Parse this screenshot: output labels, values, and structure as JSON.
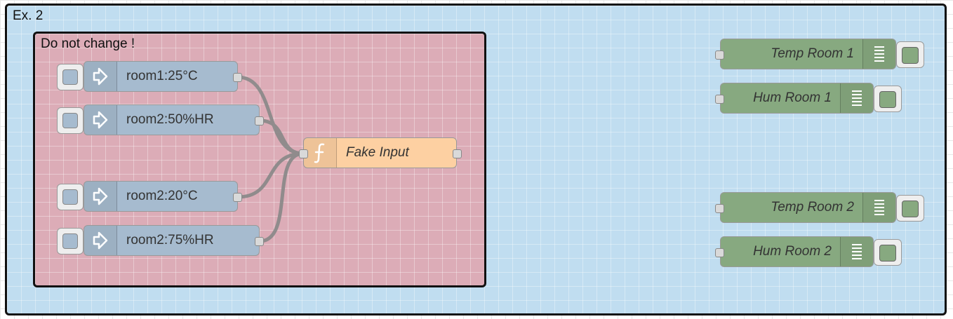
{
  "flow": {
    "outer_group": {
      "label": "Ex. 2",
      "color": "#c0ddf0"
    },
    "inner_group": {
      "label": "Do not change !",
      "color": "#dcacb7"
    },
    "inject_nodes": [
      {
        "label": "room1:25°C",
        "icon": "inject-arrow-icon"
      },
      {
        "label": "room2:50%HR",
        "icon": "inject-arrow-icon"
      },
      {
        "label": "room2:20°C",
        "icon": "inject-arrow-icon"
      },
      {
        "label": "room2:75%HR",
        "icon": "inject-arrow-icon"
      }
    ],
    "function_node": {
      "label": "Fake Input",
      "icon": "function-icon",
      "color": "#fdd0a2"
    },
    "debug_nodes": [
      {
        "label": "Temp Room 1",
        "icon": "debug-list-icon"
      },
      {
        "label": "Hum Room 1",
        "icon": "debug-list-icon"
      },
      {
        "label": "Temp Room 2",
        "icon": "debug-list-icon"
      },
      {
        "label": "Hum Room 2",
        "icon": "debug-list-icon"
      }
    ],
    "colors": {
      "inject": "#a6bbcf",
      "debug": "#87a980",
      "wire": "#999999"
    }
  }
}
